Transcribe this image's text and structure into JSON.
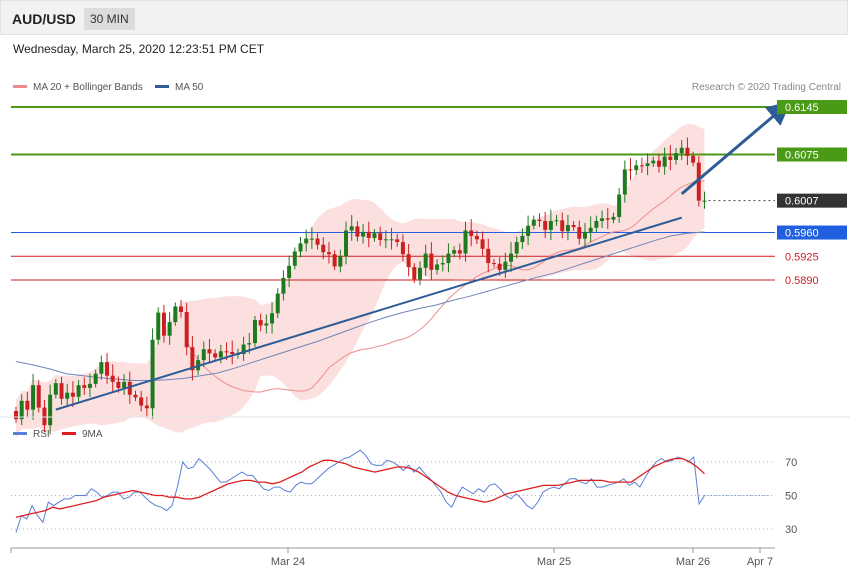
{
  "header": {
    "pair": "AUD/USD",
    "timeframe": "30 MIN"
  },
  "datetime": "Wednesday, March 25, 2020 12:23:51 PM CET",
  "legend": {
    "ma20": "MA 20 + Bollinger Bands",
    "ma50": "MA 50"
  },
  "credit": "Research © 2020 Trading Central",
  "rsi_legend": {
    "rsi": "RSI",
    "ma": "9MA"
  },
  "colors": {
    "up": "#1e7a1e",
    "down": "#cc1f1f",
    "band": "#fbd5d5",
    "ma20": "#ee8c8c",
    "ma50": "#6f86b6",
    "green_level": "#4a9a16",
    "blue_level": "#1f5fe0",
    "red_level": "#cc1f1f",
    "arrow": "#2e5c96",
    "current_tag": "#333333",
    "rsi": "#5b7fd6",
    "rsi_ma": "#dd1e1e"
  },
  "chart_data": [
    {
      "type": "candlestick",
      "title": "AUD/USD 30 MIN",
      "x_ticks": [
        "Mar 24",
        "Mar 25",
        "Mar 26",
        "Apr 7"
      ],
      "grid": false,
      "levels": [
        {
          "value": 0.6145,
          "label": "0.6145",
          "kind": "resistance",
          "color": "#4a9a16"
        },
        {
          "value": 0.6075,
          "label": "0.6075",
          "kind": "resistance",
          "color": "#4a9a16"
        },
        {
          "value": 0.6007,
          "label": "0.6007",
          "kind": "current",
          "color": "#333333"
        },
        {
          "value": 0.596,
          "label": "0.5960",
          "kind": "pivot",
          "color": "#1f5fe0"
        },
        {
          "value": 0.5925,
          "label": "0.5925",
          "kind": "support",
          "color": "#cc1f1f"
        },
        {
          "value": 0.589,
          "label": "0.5890",
          "kind": "support",
          "color": "#cc1f1f"
        }
      ],
      "closes": [
        0.5685,
        0.5712,
        0.5699,
        0.5735,
        0.5702,
        0.5676,
        0.5721,
        0.5738,
        0.5715,
        0.5724,
        0.5718,
        0.5735,
        0.5731,
        0.5737,
        0.5752,
        0.5769,
        0.5749,
        0.574,
        0.5731,
        0.574,
        0.5721,
        0.5717,
        0.5705,
        0.5701,
        0.5802,
        0.5842,
        0.5808,
        0.5828,
        0.5851,
        0.5843,
        0.5791,
        0.5757,
        0.5772,
        0.5788,
        0.5782,
        0.5776,
        0.5785,
        0.5784,
        0.5781,
        0.5781,
        0.5795,
        0.5797,
        0.5831,
        0.5823,
        0.5826,
        0.5841,
        0.587,
        0.5893,
        0.5911,
        0.5932,
        0.5944,
        0.5951,
        0.5951,
        0.5942,
        0.5931,
        0.5928,
        0.591,
        0.5925,
        0.5963,
        0.5969,
        0.5954,
        0.5961,
        0.5952,
        0.5959,
        0.5949,
        0.595,
        0.595,
        0.5946,
        0.5928,
        0.5909,
        0.5891,
        0.5908,
        0.5929,
        0.5905,
        0.5913,
        0.5915,
        0.5929,
        0.5934,
        0.5929,
        0.5963,
        0.5955,
        0.595,
        0.5936,
        0.5915,
        0.5914,
        0.5905,
        0.5917,
        0.5929,
        0.5946,
        0.5955,
        0.597,
        0.5979,
        0.5977,
        0.5964,
        0.5977,
        0.5978,
        0.5962,
        0.5971,
        0.5968,
        0.5951,
        0.5961,
        0.5967,
        0.5977,
        0.5981,
        0.5979,
        0.5983,
        0.6016,
        0.6053,
        0.6052,
        0.6059,
        0.6058,
        0.6062,
        0.6066,
        0.6057,
        0.6072,
        0.6067,
        0.6077,
        0.6085,
        0.6073,
        0.6063,
        0.6007,
        0.6007
      ],
      "ma20": [
        0.58,
        0.5784,
        0.5772,
        0.5763,
        0.5755,
        0.5748,
        0.5742,
        0.5737,
        0.5733,
        0.573,
        0.5727,
        0.5726,
        0.5725,
        0.5725,
        0.5727,
        0.5729,
        0.573,
        0.5729,
        0.5728,
        0.5727,
        0.5726,
        0.5727,
        0.5731,
        0.574,
        0.575,
        0.5761,
        0.5767,
        0.5773,
        0.5779,
        0.5783,
        0.5786,
        0.5788,
        0.5789,
        0.5791,
        0.5793,
        0.5795,
        0.5798,
        0.5801,
        0.5803,
        0.5806,
        0.5811,
        0.5817,
        0.5824,
        0.5833,
        0.5843,
        0.5853,
        0.5862,
        0.587,
        0.5877,
        0.5883,
        0.5889,
        0.5895,
        0.59,
        0.5903,
        0.5907,
        0.5911,
        0.5912,
        0.5911,
        0.5908,
        0.5905,
        0.5905,
        0.5908,
        0.5913,
        0.5919,
        0.5926,
        0.593,
        0.5933,
        0.5934,
        0.5935,
        0.5937,
        0.5941,
        0.5946,
        0.595,
        0.5954,
        0.5958,
        0.5961,
        0.5962,
        0.5963,
        0.5967,
        0.5973,
        0.5981,
        0.5988,
        0.5995,
        0.6001,
        0.6007,
        0.6014,
        0.6021,
        0.6027,
        0.6031,
        0.6034,
        0.6036,
        0.6036
      ],
      "ma50": [
        0.577,
        0.5765,
        0.5759,
        0.5752,
        0.5749,
        0.5746,
        0.5744,
        0.5742,
        0.5742,
        0.5743,
        0.5745,
        0.5749,
        0.5753,
        0.576,
        0.5768,
        0.5776,
        0.5784,
        0.5792,
        0.58,
        0.5809,
        0.5818,
        0.5827,
        0.5835,
        0.5842,
        0.5848,
        0.5853,
        0.586,
        0.5866,
        0.5873,
        0.588,
        0.5887,
        0.5894,
        0.59,
        0.5908,
        0.5916,
        0.5924,
        0.5932,
        0.594,
        0.5948,
        0.5955,
        0.5959,
        0.5961
      ],
      "trendlines": [
        {
          "from": [
            7,
            0.5699
          ],
          "to": [
            117,
            0.5982
          ],
          "kind": "support"
        },
        {
          "from": [
            117,
            0.6017
          ],
          "to": [
            135,
            0.6145
          ],
          "kind": "projection-arrow"
        }
      ]
    },
    {
      "type": "line",
      "title": "RSI",
      "ylim": [
        20,
        80
      ],
      "y_ticks": [
        70,
        50,
        30
      ],
      "series": [
        {
          "name": "RSI",
          "values": [
            28,
            38,
            36,
            44,
            38,
            34,
            46,
            44,
            46,
            48,
            48,
            50,
            50,
            50,
            54,
            52,
            49,
            50,
            52,
            52,
            48,
            49,
            52,
            52,
            49,
            46,
            44,
            43,
            41,
            44,
            55,
            70,
            66,
            67,
            72,
            69,
            66,
            62,
            58,
            58,
            60,
            62,
            64,
            62,
            62,
            58,
            54,
            53,
            55,
            55,
            53,
            52,
            56,
            58,
            57,
            57,
            60,
            63,
            66,
            68,
            70,
            72,
            73,
            75,
            77,
            74,
            69,
            68,
            68,
            71,
            70,
            68,
            65,
            68,
            64,
            67,
            63,
            60,
            56,
            52,
            46,
            43,
            50,
            55,
            53,
            51,
            54,
            52,
            56,
            57,
            54,
            50,
            48,
            51,
            48,
            44,
            42,
            46,
            52,
            54,
            55,
            54,
            57,
            60,
            60,
            58,
            57,
            60,
            55,
            55,
            56,
            57,
            58,
            60,
            56,
            58,
            55,
            61,
            66,
            70,
            72,
            70,
            71,
            73,
            72,
            70,
            73,
            45,
            50
          ],
          "extension": {
            "from": 50,
            "to": 50
          }
        },
        {
          "name": "9MA",
          "values": [
            37,
            38,
            39,
            40,
            41,
            43,
            42,
            43,
            44,
            45,
            46,
            47,
            49,
            50,
            51,
            52,
            53,
            52,
            51,
            50,
            50,
            49,
            49,
            48,
            48,
            49,
            51,
            53,
            55,
            57,
            58,
            59,
            59,
            58,
            58,
            57,
            58,
            60,
            62,
            64,
            67,
            69,
            71,
            71,
            70,
            69,
            67,
            66,
            65,
            64,
            65,
            66,
            67,
            67,
            66,
            64,
            61,
            58,
            55,
            52,
            50,
            49,
            48,
            47,
            46,
            47,
            49,
            51,
            52,
            53,
            54,
            55,
            56,
            56,
            56,
            57,
            58,
            59,
            59,
            59,
            59,
            58,
            58,
            58,
            58,
            61,
            64,
            67,
            69,
            71,
            72,
            72,
            70,
            67,
            63
          ]
        }
      ]
    }
  ]
}
